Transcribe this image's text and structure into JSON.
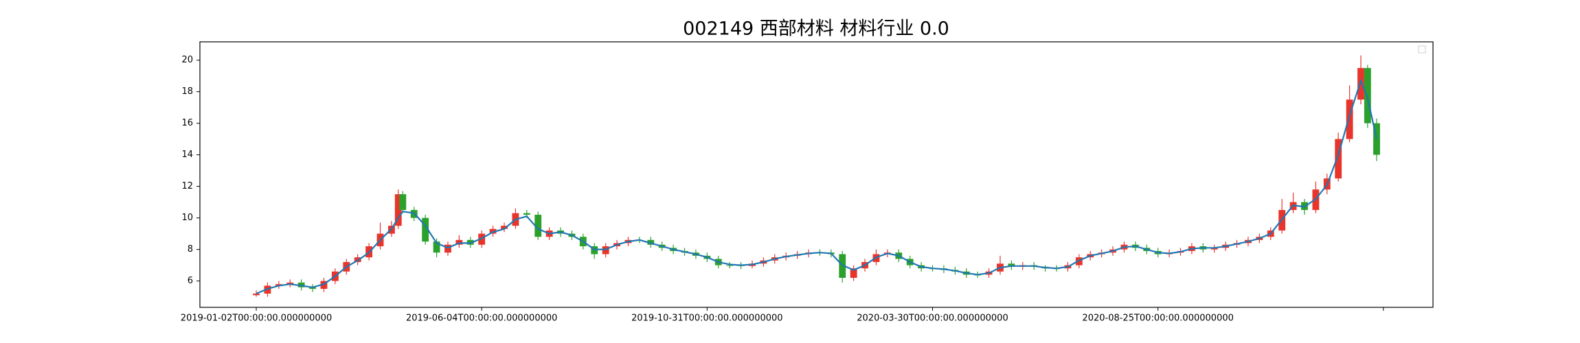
{
  "chart_data": {
    "type": "candlestick",
    "title": "002149 西部材料 材料行业 0.0",
    "x": [
      0,
      5,
      10,
      15,
      20,
      25,
      30,
      35,
      40,
      45,
      50,
      55,
      60,
      63,
      65,
      70,
      75,
      80,
      85,
      90,
      95,
      100,
      105,
      110,
      115,
      120,
      125,
      130,
      135,
      140,
      145,
      150,
      155,
      160,
      165,
      170,
      175,
      180,
      185,
      190,
      195,
      200,
      205,
      210,
      215,
      220,
      225,
      230,
      235,
      240,
      245,
      250,
      255,
      260,
      265,
      270,
      275,
      280,
      285,
      290,
      295,
      300,
      305,
      310,
      315,
      320,
      325,
      330,
      335,
      340,
      345,
      350,
      355,
      360,
      365,
      370,
      375,
      380,
      385,
      390,
      395,
      400,
      405,
      410,
      415,
      420,
      425,
      430,
      435,
      440,
      445,
      450,
      455,
      460,
      465,
      470,
      475,
      480,
      485,
      490,
      493,
      497
    ],
    "open": [
      5.1,
      5.2,
      5.7,
      5.8,
      5.9,
      5.6,
      5.5,
      6.0,
      6.6,
      7.2,
      7.5,
      8.2,
      9.0,
      9.5,
      11.5,
      10.5,
      10.0,
      8.5,
      7.8,
      8.3,
      8.6,
      8.3,
      9.0,
      9.3,
      9.5,
      10.3,
      10.2,
      8.8,
      9.2,
      9.0,
      8.8,
      8.2,
      7.7,
      8.2,
      8.4,
      8.6,
      8.6,
      8.3,
      8.1,
      7.9,
      7.8,
      7.6,
      7.4,
      7.0,
      7.0,
      6.95,
      7.1,
      7.3,
      7.5,
      7.6,
      7.7,
      7.8,
      7.8,
      7.7,
      6.2,
      6.8,
      7.2,
      7.7,
      7.8,
      7.4,
      7.0,
      6.8,
      6.8,
      6.7,
      6.6,
      6.4,
      6.4,
      6.6,
      7.1,
      6.9,
      7.0,
      6.9,
      6.8,
      6.8,
      7.0,
      7.5,
      7.7,
      7.8,
      8.0,
      8.3,
      8.1,
      7.9,
      7.7,
      7.8,
      7.9,
      8.2,
      8.0,
      8.1,
      8.3,
      8.4,
      8.6,
      8.8,
      9.2,
      10.5,
      11.0,
      10.5,
      11.8,
      12.5,
      15.0,
      17.5,
      19.5,
      16.0
    ],
    "high": [
      5.4,
      5.9,
      6.0,
      6.1,
      6.1,
      5.8,
      6.2,
      6.8,
      7.4,
      7.7,
      8.4,
      9.7,
      9.8,
      11.8,
      11.7,
      10.7,
      10.2,
      8.7,
      8.5,
      8.9,
      8.8,
      9.2,
      9.5,
      9.7,
      10.6,
      10.5,
      10.4,
      9.4,
      9.4,
      9.2,
      9.0,
      8.4,
      8.4,
      8.6,
      8.8,
      8.8,
      8.8,
      8.5,
      8.3,
      8.1,
      8.0,
      7.8,
      7.6,
      7.2,
      7.2,
      7.3,
      7.5,
      7.7,
      7.8,
      7.9,
      8.0,
      8.0,
      8.0,
      7.9,
      7.0,
      7.4,
      8.0,
      8.0,
      8.0,
      7.6,
      7.2,
      7.0,
      7.0,
      6.9,
      6.8,
      6.6,
      6.8,
      7.6,
      7.3,
      7.2,
      7.2,
      7.0,
      7.0,
      7.2,
      7.7,
      7.9,
      8.0,
      8.2,
      8.5,
      8.5,
      8.3,
      8.1,
      8.0,
      8.1,
      8.4,
      8.4,
      8.3,
      8.5,
      8.6,
      8.8,
      9.0,
      9.4,
      11.2,
      11.6,
      11.2,
      12.3,
      12.8,
      15.4,
      18.4,
      20.3,
      19.7,
      16.3
    ],
    "low": [
      5.0,
      5.0,
      5.5,
      5.6,
      5.4,
      5.3,
      5.3,
      5.8,
      6.4,
      7.0,
      7.3,
      8.0,
      8.8,
      9.3,
      10.3,
      9.8,
      8.3,
      7.5,
      7.6,
      8.1,
      8.1,
      8.1,
      8.8,
      9.1,
      9.3,
      10.0,
      8.6,
      8.6,
      8.8,
      8.6,
      8.0,
      7.4,
      7.5,
      8.0,
      8.2,
      8.4,
      8.1,
      7.9,
      7.7,
      7.6,
      7.4,
      7.2,
      6.8,
      6.8,
      6.75,
      6.8,
      6.9,
      7.1,
      7.3,
      7.4,
      7.5,
      7.6,
      7.5,
      5.9,
      6.0,
      6.6,
      7.0,
      7.5,
      7.2,
      6.8,
      6.6,
      6.6,
      6.5,
      6.4,
      6.2,
      6.2,
      6.2,
      6.4,
      6.7,
      6.7,
      6.7,
      6.6,
      6.6,
      6.6,
      6.8,
      7.3,
      7.5,
      7.6,
      7.8,
      7.9,
      7.7,
      7.5,
      7.5,
      7.6,
      7.7,
      7.8,
      7.8,
      7.9,
      8.1,
      8.2,
      8.4,
      8.6,
      9.0,
      10.3,
      10.2,
      10.3,
      11.5,
      12.3,
      14.8,
      17.2,
      15.7,
      13.6
    ],
    "close": [
      5.2,
      5.7,
      5.8,
      5.9,
      5.6,
      5.5,
      6.0,
      6.6,
      7.2,
      7.5,
      8.2,
      9.0,
      9.5,
      11.5,
      10.5,
      10.0,
      8.5,
      7.8,
      8.3,
      8.6,
      8.3,
      9.0,
      9.3,
      9.5,
      10.3,
      10.2,
      8.8,
      9.2,
      9.0,
      8.8,
      8.2,
      7.7,
      8.2,
      8.4,
      8.6,
      8.6,
      8.3,
      8.1,
      7.9,
      7.8,
      7.6,
      7.4,
      7.0,
      7.0,
      6.95,
      7.1,
      7.3,
      7.5,
      7.6,
      7.7,
      7.8,
      7.8,
      7.7,
      6.2,
      6.8,
      7.2,
      7.7,
      7.8,
      7.4,
      7.0,
      6.8,
      6.8,
      6.7,
      6.6,
      6.4,
      6.4,
      6.6,
      7.1,
      6.9,
      7.0,
      6.9,
      6.8,
      6.8,
      7.0,
      7.5,
      7.7,
      7.8,
      8.0,
      8.3,
      8.1,
      7.9,
      7.7,
      7.8,
      7.9,
      8.2,
      8.0,
      8.1,
      8.3,
      8.4,
      8.6,
      8.8,
      9.2,
      10.5,
      11.0,
      10.5,
      11.8,
      12.5,
      15.0,
      17.5,
      19.5,
      16.0,
      14.0
    ],
    "ma": [
      5.2,
      5.5,
      5.7,
      5.8,
      5.7,
      5.6,
      5.8,
      6.3,
      6.9,
      7.3,
      7.8,
      8.6,
      9.3,
      10.0,
      10.4,
      10.3,
      9.5,
      8.4,
      8.1,
      8.4,
      8.4,
      8.7,
      9.1,
      9.3,
      9.9,
      10.1,
      9.3,
      9.0,
      9.1,
      8.9,
      8.5,
      8.0,
      8.0,
      8.3,
      8.5,
      8.6,
      8.4,
      8.2,
      8.0,
      7.85,
      7.7,
      7.5,
      7.2,
      7.05,
      7.0,
      7.05,
      7.2,
      7.4,
      7.55,
      7.65,
      7.75,
      7.8,
      7.75,
      7.0,
      6.7,
      7.0,
      7.5,
      7.75,
      7.6,
      7.2,
      6.9,
      6.8,
      6.75,
      6.65,
      6.5,
      6.4,
      6.5,
      6.85,
      6.95,
      6.95,
      6.95,
      6.85,
      6.8,
      6.9,
      7.3,
      7.6,
      7.75,
      7.9,
      8.15,
      8.2,
      8.0,
      7.8,
      7.75,
      7.85,
      8.05,
      8.1,
      8.1,
      8.2,
      8.35,
      8.5,
      8.7,
      9.0,
      9.9,
      10.8,
      10.7,
      11.2,
      12.1,
      14.0,
      16.5,
      18.7,
      17.6,
      15.0
    ],
    "up_color": "#e8352c",
    "down_color": "#2ca02c",
    "ma_color": "#1f77b4",
    "xlim": [
      -25,
      522
    ],
    "ylim": [
      4.33,
      21.16
    ],
    "yticks": [
      6,
      8,
      10,
      12,
      14,
      16,
      18,
      20
    ],
    "xticks": [
      {
        "value": 0,
        "label": "2019-01-02T00:00:00.000000000"
      },
      {
        "value": 100,
        "label": "2019-06-04T00:00:00.000000000"
      },
      {
        "value": 200,
        "label": "2019-10-31T00:00:00.000000000"
      },
      {
        "value": 300,
        "label": "2020-03-30T00:00:00.000000000"
      },
      {
        "value": 400,
        "label": "2020-08-25T00:00:00.000000000"
      },
      {
        "value": 500,
        "label": null
      }
    ]
  }
}
